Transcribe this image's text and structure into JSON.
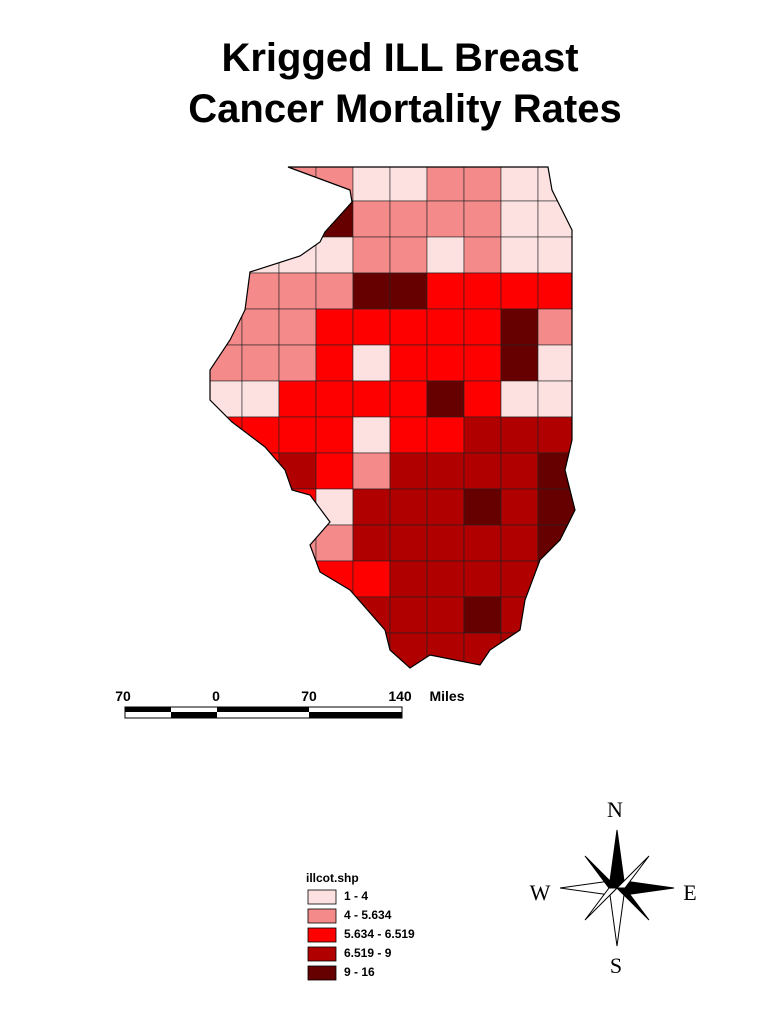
{
  "title": [
    "Krigged ILL Breast",
    "Cancer Mortality Rates"
  ],
  "scale_bar": {
    "labels": [
      "70",
      "0",
      "70",
      "140"
    ],
    "unit": "Miles"
  },
  "legend": {
    "title": "illcot.shp",
    "items": [
      {
        "label": "1 - 4",
        "color": "#fde1e1"
      },
      {
        "label": "4 - 5.634",
        "color": "#f58a8a"
      },
      {
        "label": "5.634 - 6.519",
        "color": "#ff0000"
      },
      {
        "label": "6.519 - 9",
        "color": "#b00000"
      },
      {
        "label": "9 - 16",
        "color": "#660000"
      }
    ]
  },
  "compass": {
    "north": "N",
    "south": "S",
    "west": "W",
    "east": "E"
  }
}
